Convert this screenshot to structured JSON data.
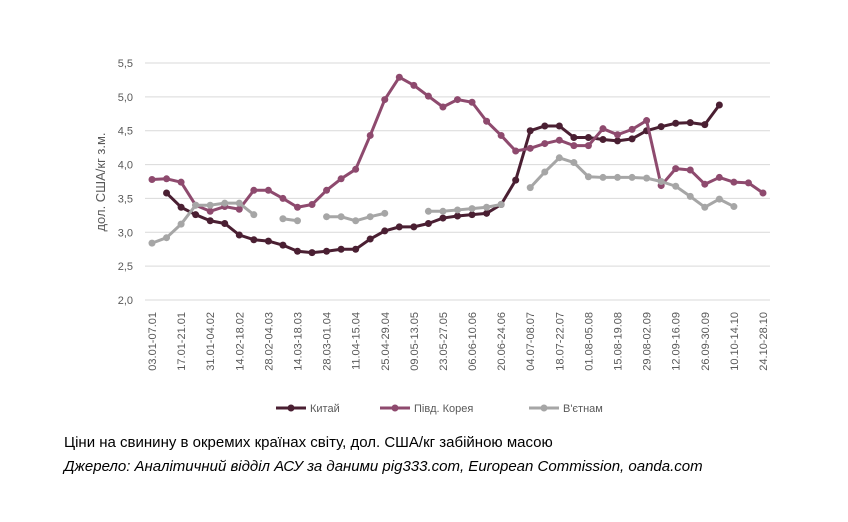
{
  "chart_data": {
    "type": "line",
    "y_label": "дол. США/кг з.м.",
    "title": "Ціни на свинину в окремих країнах світу, дол. США/кг забійною масою",
    "source": "Джерело: Аналітичний відділ АСУ за даними pig333.com, European Commission, oanda.com",
    "categories": [
      "03.01-07.01",
      null,
      "17.01-21.01",
      null,
      "31.01-04.02",
      null,
      "14.02-18.02",
      null,
      "28.02-04.03",
      null,
      "14.03-18.03",
      null,
      "28.03-01.04",
      null,
      "11.04-15.04",
      null,
      "25.04-29.04",
      null,
      "09.05-13.05",
      null,
      "23.05-27.05",
      null,
      "06.06-10.06",
      null,
      "20.06-24.06",
      null,
      "04.07-08.07",
      null,
      "18.07-22.07",
      null,
      "01.08-05.08",
      null,
      "15.08-19.08",
      null,
      "29.08-02.09",
      null,
      "12.09-16.09",
      null,
      "26.09-30.09",
      null,
      "10.10-14.10",
      null,
      "24.10-28.10"
    ],
    "series": [
      {
        "name": "Китай",
        "color": "#4a1f32",
        "values": [
          null,
          3.58,
          3.37,
          3.26,
          3.17,
          3.13,
          2.96,
          2.89,
          2.87,
          2.81,
          2.72,
          2.7,
          2.72,
          2.75,
          2.75,
          2.9,
          3.02,
          3.08,
          3.08,
          3.13,
          3.21,
          3.24,
          3.26,
          3.28,
          3.41,
          3.77,
          4.5,
          4.57,
          4.57,
          4.4,
          4.4,
          4.37,
          4.35,
          4.38,
          4.5,
          4.56,
          4.61,
          4.62,
          4.59,
          4.88,
          null,
          null,
          null
        ]
      },
      {
        "name": "Півд. Корея",
        "color": "#8e4a6e",
        "values": [
          3.78,
          3.79,
          3.74,
          3.4,
          3.31,
          3.38,
          3.34,
          3.62,
          3.62,
          3.5,
          3.37,
          3.41,
          3.62,
          3.79,
          3.93,
          4.43,
          4.96,
          5.29,
          5.17,
          5.01,
          4.85,
          4.96,
          4.92,
          4.64,
          4.43,
          4.2,
          4.24,
          4.31,
          4.36,
          4.28,
          4.28,
          4.53,
          4.44,
          4.52,
          4.65,
          3.69,
          3.94,
          3.92,
          3.71,
          3.81,
          3.74,
          3.73,
          3.58
        ]
      },
      {
        "name": "В'єтнам",
        "color": "#a6a6a6",
        "values": [
          2.84,
          2.92,
          3.12,
          3.4,
          3.4,
          3.43,
          3.43,
          3.26,
          null,
          3.2,
          3.17,
          null,
          3.23,
          3.23,
          3.17,
          3.23,
          3.28,
          null,
          null,
          3.31,
          3.31,
          3.33,
          3.35,
          3.37,
          3.41,
          null,
          3.66,
          3.89,
          4.1,
          4.03,
          3.82,
          3.81,
          3.81,
          3.81,
          3.8,
          3.75,
          3.68,
          3.53,
          3.37,
          3.49,
          3.38,
          null,
          null
        ]
      }
    ],
    "ylim": [
      2.0,
      5.5
    ],
    "yticks": [
      {
        "value": 2.0,
        "label": "2,0"
      },
      {
        "value": 2.5,
        "label": "2,5"
      },
      {
        "value": 3.0,
        "label": "3,0"
      },
      {
        "value": 3.5,
        "label": "3,5"
      },
      {
        "value": 4.0,
        "label": "4,0"
      },
      {
        "value": 4.5,
        "label": "4,5"
      },
      {
        "value": 5.0,
        "label": "5,0"
      },
      {
        "value": 5.5,
        "label": "5,5"
      }
    ],
    "grid": true,
    "legend": "bottom"
  }
}
